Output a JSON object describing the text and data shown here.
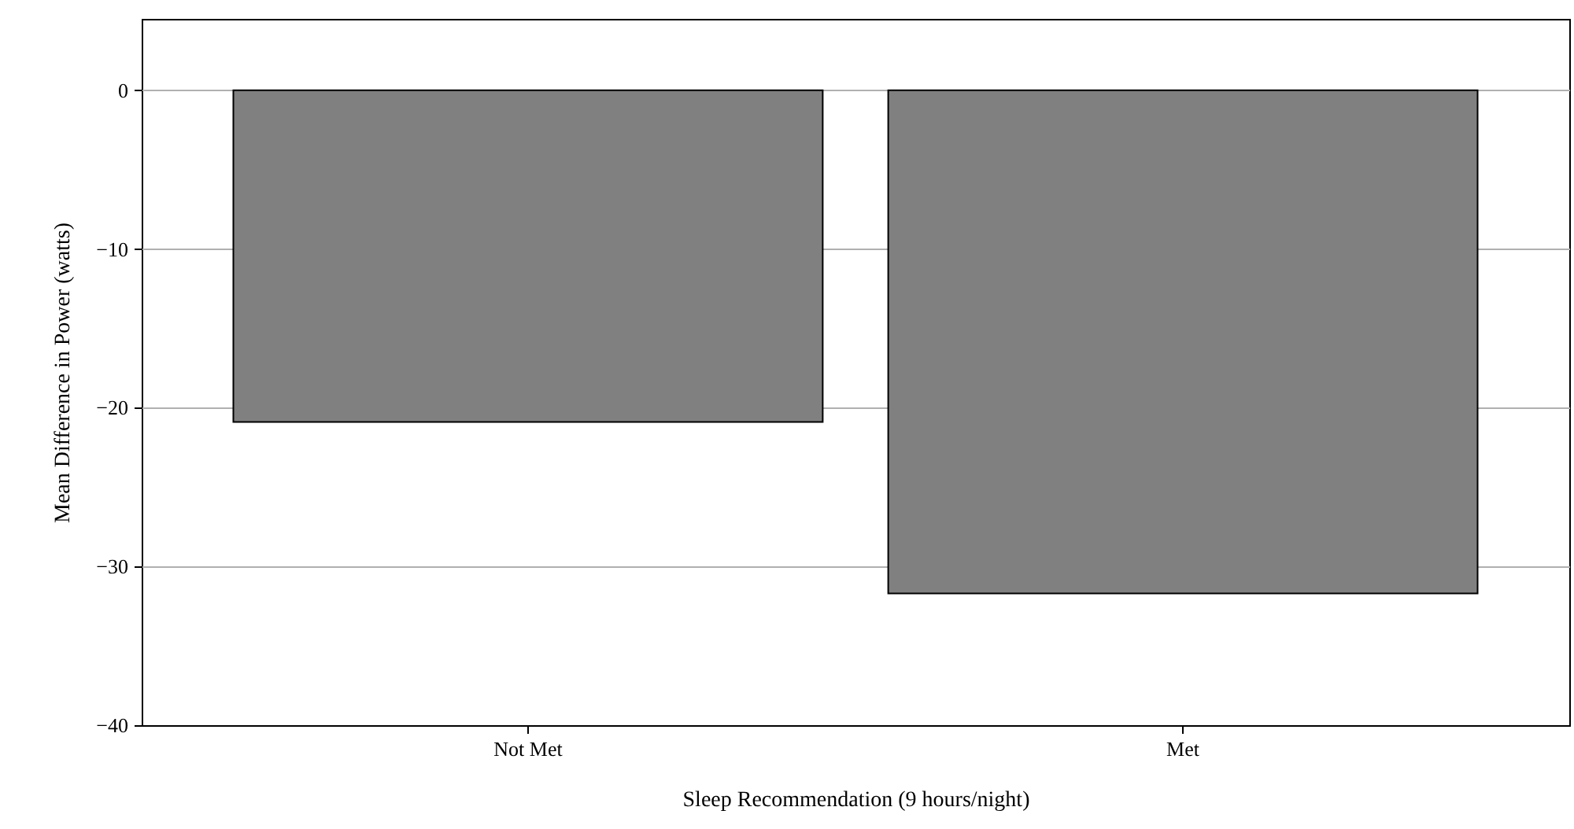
{
  "chart_data": {
    "type": "bar",
    "xlabel": "Sleep Recommendation (9 hours/night)",
    "ylabel": "Mean Difference in Power (watts)",
    "categories": [
      "Not Met",
      "Met"
    ],
    "values": [
      -20.9,
      -31.7
    ],
    "color": "#808080",
    "ylim": [
      -40,
      4.5
    ],
    "yticks": [
      -40,
      -30,
      -20,
      -10,
      0
    ],
    "grid": "y"
  }
}
